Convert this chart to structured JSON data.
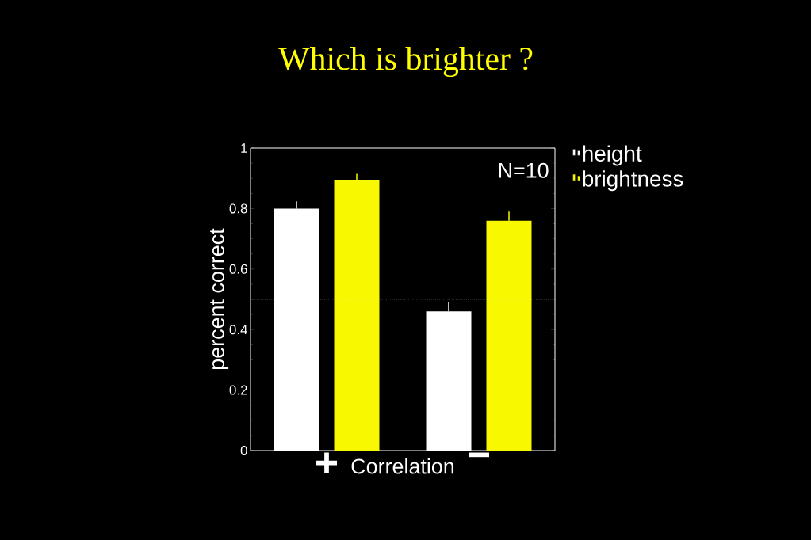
{
  "chart_data": {
    "type": "bar",
    "title": "Which is brighter ?",
    "xlabel": "Correlation",
    "ylabel": "percent correct",
    "categories": [
      "+",
      "−"
    ],
    "series": [
      {
        "name": "height",
        "color": "#ffffff",
        "values": [
          0.8,
          0.46
        ],
        "errors": [
          [
            0.8,
            0.824
          ],
          [
            0.46,
            0.49
          ]
        ]
      },
      {
        "name": "brightness",
        "color": "#f8f800",
        "values": [
          0.895,
          0.76
        ],
        "errors": [
          [
            0.895,
            0.915
          ],
          [
            0.76,
            0.79
          ]
        ]
      }
    ],
    "ylim": [
      0,
      1
    ],
    "yticks": [
      0,
      0.2,
      0.4,
      0.6,
      0.8,
      1
    ],
    "ref_lines": [
      {
        "axis": "y",
        "value": 0.5,
        "color": "#ffffff",
        "line_style": "dotted"
      }
    ],
    "annotations": [
      "N=10"
    ],
    "legend": "top right",
    "grid": false
  }
}
